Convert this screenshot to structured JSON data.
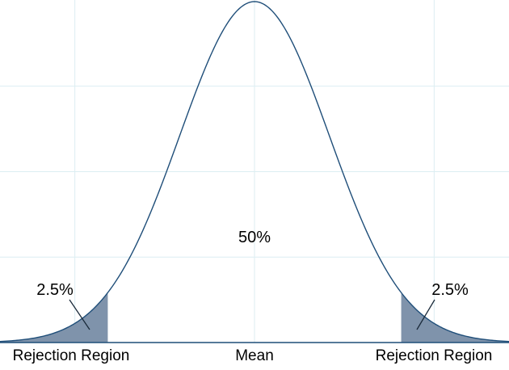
{
  "chart_data": {
    "type": "area",
    "title": "",
    "xlabel": "",
    "ylabel": "",
    "distribution": "normal",
    "mean": 0,
    "sd": 1,
    "xlim": [
      -3.4,
      3.4
    ],
    "ylim": [
      0,
      0.4
    ],
    "grid": true,
    "legend": "none",
    "tick_labels": [
      {
        "x": -2.54,
        "label": "Rejection Region"
      },
      {
        "x": 0,
        "label": "Mean"
      },
      {
        "x": 2.54,
        "label": "Rejection Region"
      }
    ],
    "shaded_regions": [
      {
        "from": -3.4,
        "to": -1.96,
        "label": "2.5%"
      },
      {
        "from": 1.96,
        "to": 3.4,
        "label": "2.5%"
      }
    ],
    "center_label": "50%",
    "colors": {
      "curve": "#1f4e79",
      "shade": "#7f93ab",
      "grid": "#dceef2",
      "axis": "#1f4e79"
    }
  }
}
